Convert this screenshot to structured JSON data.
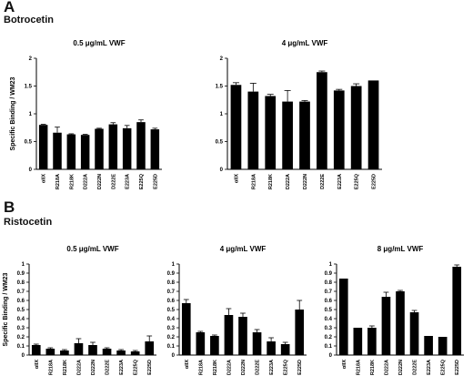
{
  "panels": [
    {
      "letter": "A",
      "agonist": "Botrocetin"
    },
    {
      "letter": "B",
      "agonist": "Ristocetin"
    }
  ],
  "chart_data": [
    {
      "type": "bar",
      "title": "0.5 μg/mL VWF",
      "ylabel": "Specific Binding / WM23",
      "categories": [
        "αIIX",
        "R218A",
        "R218K",
        "D222A",
        "D222N",
        "D222E",
        "E223A",
        "E225Q",
        "E225D"
      ],
      "values": [
        0.8,
        0.66,
        0.63,
        0.62,
        0.73,
        0.81,
        0.74,
        0.85,
        0.72
      ],
      "errors": [
        0.01,
        0.1,
        0.01,
        0.01,
        0.01,
        0.03,
        0.05,
        0.04,
        0.02
      ],
      "ylim": [
        0,
        2.0
      ],
      "ticks": [
        "0",
        "0.5",
        "1",
        "1.5",
        "2"
      ],
      "tick_values": [
        0,
        0.5,
        1.0,
        1.5,
        2.0
      ]
    },
    {
      "type": "bar",
      "title": "4 μg/mL VWF",
      "ylabel": "",
      "categories": [
        "αIIX",
        "R218A",
        "R218K",
        "D222A",
        "D222N",
        "D222E",
        "E223A",
        "E225Q",
        "E225D"
      ],
      "values": [
        1.52,
        1.4,
        1.32,
        1.22,
        1.22,
        1.75,
        1.42,
        1.5,
        1.6
      ],
      "errors": [
        0.04,
        0.15,
        0.03,
        0.2,
        0.02,
        0.02,
        0.02,
        0.04,
        0.0
      ],
      "ylim": [
        0,
        2.0
      ],
      "ticks": [
        "0",
        "0.5",
        "1",
        "1.5",
        "2"
      ],
      "tick_values": [
        0,
        0.5,
        1.0,
        1.5,
        2.0
      ]
    },
    {
      "type": "bar",
      "title": "0.5 μg/mL VWF",
      "ylabel": "Specific Binding / WM23",
      "categories": [
        "αIIX",
        "R218A",
        "R218K",
        "D222A",
        "D222N",
        "D222E",
        "E223A",
        "E225Q",
        "E225D"
      ],
      "values": [
        0.11,
        0.07,
        0.05,
        0.13,
        0.11,
        0.07,
        0.05,
        0.04,
        0.15
      ],
      "errors": [
        0.01,
        0.01,
        0.01,
        0.05,
        0.03,
        0.01,
        0.01,
        0.01,
        0.06
      ],
      "ylim": [
        0,
        1.0
      ],
      "ticks": [
        "0",
        "0.1",
        "0.2",
        "0.3",
        "0.4",
        "0.5",
        "0.6",
        "0.7",
        "0.8",
        "0.9",
        "1"
      ],
      "tick_values": [
        0,
        0.1,
        0.2,
        0.3,
        0.4,
        0.5,
        0.6,
        0.7,
        0.8,
        0.9,
        1.0
      ]
    },
    {
      "type": "bar",
      "title": "4 μg/mL VWF",
      "ylabel": "",
      "categories": [
        "αIIX",
        "R218A",
        "R218K",
        "D222A",
        "D222N",
        "D222E",
        "E223A",
        "E225Q",
        "E225D"
      ],
      "values": [
        0.57,
        0.25,
        0.21,
        0.44,
        0.42,
        0.25,
        0.15,
        0.12,
        0.5
      ],
      "errors": [
        0.04,
        0.01,
        0.01,
        0.07,
        0.04,
        0.03,
        0.04,
        0.02,
        0.1
      ],
      "ylim": [
        0,
        1.0
      ],
      "ticks": [
        "0",
        "0.1",
        "0.2",
        "0.3",
        "0.4",
        "0.5",
        "0.6",
        "0.7",
        "0.8",
        "0.9",
        "1"
      ],
      "tick_values": [
        0,
        0.1,
        0.2,
        0.3,
        0.4,
        0.5,
        0.6,
        0.7,
        0.8,
        0.9,
        1.0
      ]
    },
    {
      "type": "bar",
      "title": "8 μg/mL VWF",
      "ylabel": "",
      "categories": [
        "αIIX",
        "R218A",
        "R218K",
        "D222A",
        "D222N",
        "D222E",
        "E223A",
        "E225Q",
        "E225D"
      ],
      "values": [
        0.84,
        0.3,
        0.3,
        0.64,
        0.7,
        0.47,
        0.21,
        0.2,
        0.97
      ],
      "errors": [
        0.0,
        0.0,
        0.02,
        0.05,
        0.01,
        0.02,
        0.0,
        0.0,
        0.02
      ],
      "ylim": [
        0,
        1.0
      ],
      "ticks": [
        "0",
        "0.1",
        "0.2",
        "0.3",
        "0.4",
        "0.5",
        "0.6",
        "0.7",
        "0.8",
        "0.9",
        "1"
      ],
      "tick_values": [
        0,
        0.1,
        0.2,
        0.3,
        0.4,
        0.5,
        0.6,
        0.7,
        0.8,
        0.9,
        1.0
      ]
    }
  ]
}
